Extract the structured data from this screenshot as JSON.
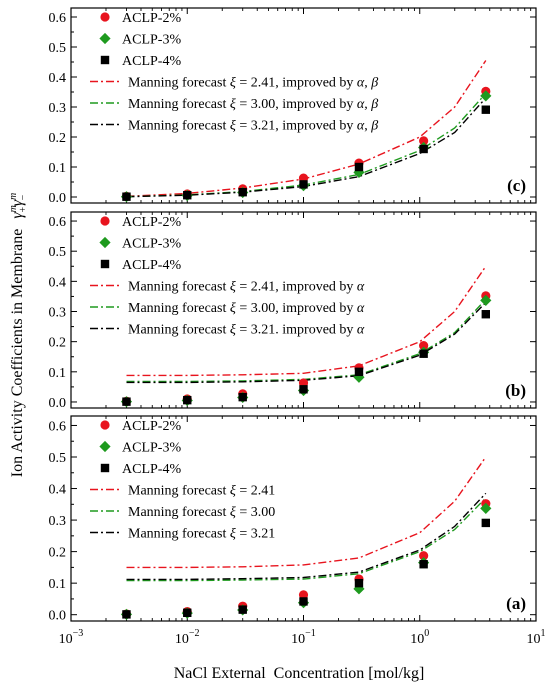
{
  "chart_data": {
    "type": "scatter",
    "figure": {
      "xlabel": "NaCl External  Concentration [mol/kg]",
      "ylabel": "Ion Activity Coefficients in Membrane",
      "ylabel_math": "γ",
      "x_scale": "log",
      "xlim": [
        0.001,
        10
      ],
      "x_ticks": [
        {
          "value": 0.001,
          "base": "10",
          "exp": "−3"
        },
        {
          "value": 0.01,
          "base": "10",
          "exp": "−2"
        },
        {
          "value": 0.1,
          "base": "10",
          "exp": "−1"
        },
        {
          "value": 1,
          "base": "10",
          "exp": "0"
        },
        {
          "value": 10,
          "base": "10",
          "exp": "1"
        }
      ],
      "colors": {
        "red": "#e8141e",
        "green": "#1e9a1e",
        "black": "#000000"
      }
    },
    "panels": [
      {
        "id": "c",
        "label": "(c)",
        "ylim": [
          -0.02,
          0.63
        ],
        "yticks": [
          "0.0",
          "0.1",
          "0.2",
          "0.3",
          "0.4",
          "0.5",
          "0.6"
        ],
        "series": [
          {
            "name": "ACLP-2%",
            "kind": "marker",
            "marker": "circle",
            "color": "#e8141e",
            "x": [
              0.003,
              0.01,
              0.03,
              0.1,
              0.3,
              1.08,
              3.7
            ],
            "y": [
              0.002,
              0.01,
              0.027,
              0.063,
              0.113,
              0.187,
              0.352
            ]
          },
          {
            "name": "ACLP-3%",
            "kind": "marker",
            "marker": "diamond",
            "color": "#1e9a1e",
            "x": [
              0.003,
              0.01,
              0.03,
              0.1,
              0.3,
              1.08,
              3.7
            ],
            "y": [
              0.001,
              0.005,
              0.015,
              0.038,
              0.082,
              0.165,
              0.337
            ]
          },
          {
            "name": "ACLP-4%",
            "kind": "marker",
            "marker": "square",
            "color": "#000000",
            "x": [
              0.003,
              0.01,
              0.03,
              0.1,
              0.3,
              1.08,
              3.7
            ],
            "y": [
              0.001,
              0.006,
              0.016,
              0.042,
              0.1,
              0.16,
              0.291
            ]
          },
          {
            "name": "Manning forecast ξ = 2.41, improved by α, β",
            "kind": "line",
            "dash": "8,3,2,3",
            "color": "#e8141e",
            "x": [
              0.003,
              0.01,
              0.03,
              0.1,
              0.3,
              1,
              2,
              3.7
            ],
            "y": [
              0.002,
              0.012,
              0.03,
              0.06,
              0.11,
              0.2,
              0.3,
              0.455
            ]
          },
          {
            "name": "Manning forecast ξ = 3.00, improved by α, β",
            "kind": "line",
            "dash": "8,3,2,3",
            "color": "#1e9a1e",
            "x": [
              0.003,
              0.01,
              0.03,
              0.1,
              0.3,
              1,
              2,
              3.7
            ],
            "y": [
              0.001,
              0.007,
              0.018,
              0.04,
              0.075,
              0.155,
              0.23,
              0.345
            ]
          },
          {
            "name": "Manning forecast ξ = 3.21, improved by α, β",
            "kind": "line",
            "dash": "8,3,2,3",
            "color": "#000000",
            "x": [
              0.003,
              0.01,
              0.03,
              0.1,
              0.3,
              1,
              2,
              3.7
            ],
            "y": [
              0.001,
              0.006,
              0.016,
              0.035,
              0.068,
              0.145,
              0.215,
              0.33
            ]
          }
        ]
      },
      {
        "id": "b",
        "label": "(b)",
        "ylim": [
          -0.02,
          0.63
        ],
        "yticks": [
          "0.0",
          "0.1",
          "0.2",
          "0.3",
          "0.4",
          "0.5",
          "0.6"
        ],
        "series": [
          {
            "name": "ACLP-2%",
            "kind": "marker",
            "marker": "circle",
            "color": "#e8141e",
            "x": [
              0.003,
              0.01,
              0.03,
              0.1,
              0.3,
              1.08,
              3.7
            ],
            "y": [
              0.002,
              0.01,
              0.027,
              0.063,
              0.113,
              0.187,
              0.352
            ]
          },
          {
            "name": "ACLP-3%",
            "kind": "marker",
            "marker": "diamond",
            "color": "#1e9a1e",
            "x": [
              0.003,
              0.01,
              0.03,
              0.1,
              0.3,
              1.08,
              3.7
            ],
            "y": [
              0.001,
              0.005,
              0.015,
              0.038,
              0.082,
              0.165,
              0.337
            ]
          },
          {
            "name": "ACLP-4%",
            "kind": "marker",
            "marker": "square",
            "color": "#000000",
            "x": [
              0.003,
              0.01,
              0.03,
              0.1,
              0.3,
              1.08,
              3.7
            ],
            "y": [
              0.001,
              0.006,
              0.016,
              0.042,
              0.1,
              0.16,
              0.291
            ]
          },
          {
            "name": "Manning forecast ξ = 2.41, improved by α",
            "kind": "line",
            "dash": "8,3,2,3",
            "color": "#e8141e",
            "x": [
              0.003,
              0.01,
              0.03,
              0.1,
              0.3,
              1,
              2,
              3.7
            ],
            "y": [
              0.088,
              0.088,
              0.09,
              0.095,
              0.12,
              0.2,
              0.3,
              0.45
            ]
          },
          {
            "name": "Manning forecast ξ = 3.00, improved by α",
            "kind": "line",
            "dash": "8,3,2,3",
            "color": "#1e9a1e",
            "x": [
              0.003,
              0.01,
              0.03,
              0.1,
              0.3,
              1,
              2,
              3.7
            ],
            "y": [
              0.068,
              0.068,
              0.07,
              0.075,
              0.09,
              0.16,
              0.23,
              0.34
            ]
          },
          {
            "name": "Manning forecast ξ = 3.21. improved by α",
            "kind": "line",
            "dash": "8,3,2,3",
            "color": "#000000",
            "x": [
              0.003,
              0.01,
              0.03,
              0.1,
              0.3,
              1,
              2,
              3.7
            ],
            "y": [
              0.065,
              0.065,
              0.067,
              0.072,
              0.087,
              0.155,
              0.225,
              0.33
            ]
          }
        ]
      },
      {
        "id": "a",
        "label": "(a)",
        "ylim": [
          -0.02,
          0.63
        ],
        "yticks": [
          "0.0",
          "0.1",
          "0.2",
          "0.3",
          "0.4",
          "0.5",
          "0.6"
        ],
        "series": [
          {
            "name": "ACLP-2%",
            "kind": "marker",
            "marker": "circle",
            "color": "#e8141e",
            "x": [
              0.003,
              0.01,
              0.03,
              0.1,
              0.3,
              1.08,
              3.7
            ],
            "y": [
              0.002,
              0.01,
              0.027,
              0.063,
              0.113,
              0.187,
              0.352
            ]
          },
          {
            "name": "ACLP-3%",
            "kind": "marker",
            "marker": "diamond",
            "color": "#1e9a1e",
            "x": [
              0.003,
              0.01,
              0.03,
              0.1,
              0.3,
              1.08,
              3.7
            ],
            "y": [
              0.001,
              0.005,
              0.015,
              0.038,
              0.082,
              0.165,
              0.337
            ]
          },
          {
            "name": "ACLP-4%",
            "kind": "marker",
            "marker": "square",
            "color": "#000000",
            "x": [
              0.003,
              0.01,
              0.03,
              0.1,
              0.3,
              1.08,
              3.7
            ],
            "y": [
              0.001,
              0.006,
              0.016,
              0.042,
              0.1,
              0.16,
              0.291
            ]
          },
          {
            "name": "Manning forecast ξ = 2.41",
            "kind": "line",
            "dash": "8,3,2,3",
            "color": "#e8141e",
            "x": [
              0.003,
              0.01,
              0.03,
              0.1,
              0.3,
              1,
              2,
              3.7
            ],
            "y": [
              0.15,
              0.15,
              0.152,
              0.158,
              0.18,
              0.26,
              0.36,
              0.5
            ]
          },
          {
            "name": "Manning forecast ξ = 3.00",
            "kind": "line",
            "dash": "8,3,2,3",
            "color": "#1e9a1e",
            "x": [
              0.003,
              0.01,
              0.03,
              0.1,
              0.3,
              1,
              2,
              3.7
            ],
            "y": [
              0.108,
              0.108,
              0.11,
              0.113,
              0.13,
              0.2,
              0.27,
              0.37
            ]
          },
          {
            "name": "Manning forecast ξ = 3.21",
            "kind": "line",
            "dash": "8,3,2,3",
            "color": "#000000",
            "x": [
              0.003,
              0.01,
              0.03,
              0.1,
              0.3,
              1,
              2,
              3.7
            ],
            "y": [
              0.112,
              0.112,
              0.114,
              0.118,
              0.135,
              0.205,
              0.28,
              0.385
            ]
          }
        ]
      }
    ]
  }
}
